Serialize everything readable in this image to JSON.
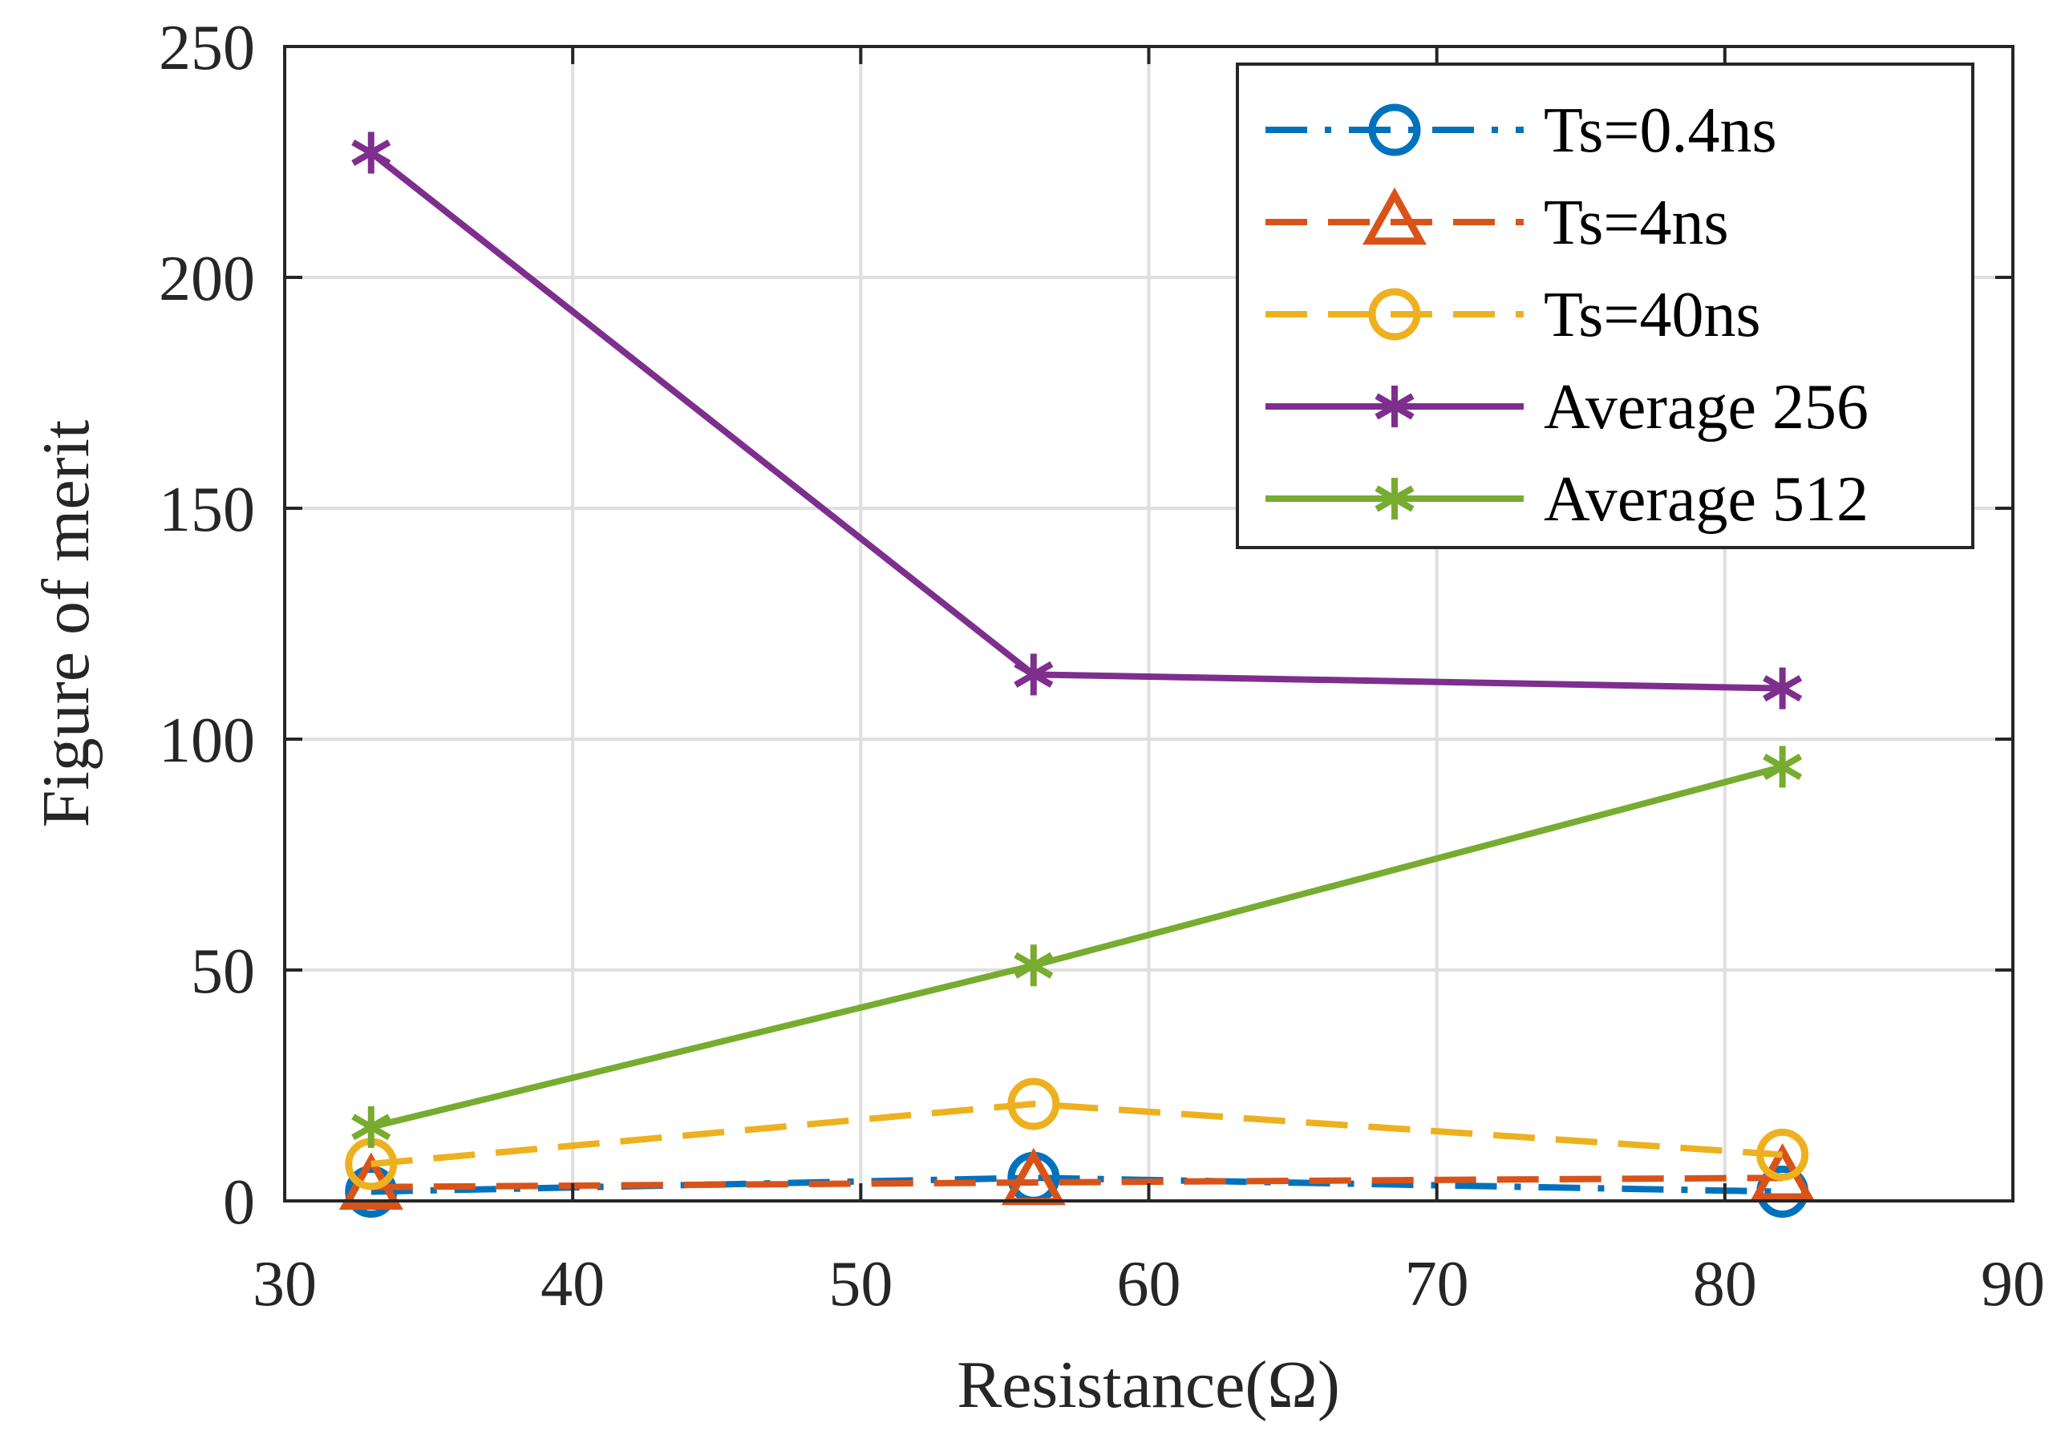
{
  "chart_data": {
    "type": "line",
    "title": "",
    "xlabel": "Resistance(Ω)",
    "ylabel": "Figure of merit",
    "xlim": [
      30,
      90
    ],
    "ylim": [
      0,
      250
    ],
    "xticks": [
      30,
      40,
      50,
      60,
      70,
      80,
      90
    ],
    "yticks": [
      0,
      50,
      100,
      150,
      200,
      250
    ],
    "x_tick_labels": [
      "30",
      "40",
      "50",
      "60",
      "70",
      "80",
      "90"
    ],
    "y_tick_labels": [
      "0",
      "50",
      "100",
      "150",
      "200",
      "250"
    ],
    "grid": true,
    "legend_position": "top-right",
    "x": [
      33,
      56,
      82
    ],
    "series": [
      {
        "name": "Ts=0.4ns",
        "values": [
          2,
          5,
          2
        ],
        "color": "#0072BD",
        "marker": "circle",
        "line": "dash-dot"
      },
      {
        "name": "Ts=4ns",
        "values": [
          3,
          4,
          5
        ],
        "color": "#D95319",
        "marker": "triangle",
        "line": "dashed"
      },
      {
        "name": "Ts=40ns",
        "values": [
          8,
          21,
          10
        ],
        "color": "#EDB120",
        "marker": "circle",
        "line": "dashed"
      },
      {
        "name": "Average 256",
        "values": [
          227,
          114,
          111
        ],
        "color": "#7E2F8E",
        "marker": "asterisk",
        "line": "solid"
      },
      {
        "name": "Average 512",
        "values": [
          16,
          51,
          94
        ],
        "color": "#77AC30",
        "marker": "asterisk",
        "line": "solid"
      }
    ]
  }
}
